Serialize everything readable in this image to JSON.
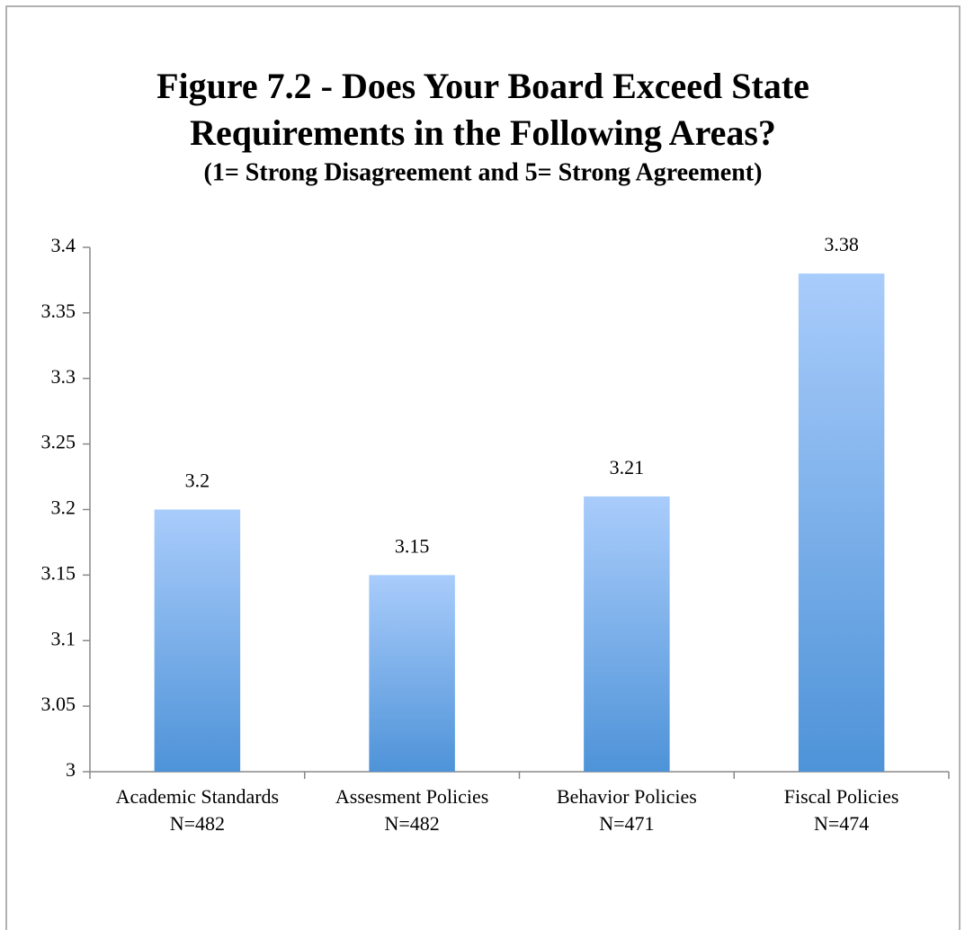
{
  "chart_data": {
    "type": "bar",
    "title": [
      "Figure 7.2 - Does Your Board Exceed State",
      "Requirements in the Following Areas?"
    ],
    "subtitle": "(1= Strong Disagreement and 5= Strong Agreement)",
    "categories": [
      "Academic Standards",
      "Assesment Policies",
      "Behavior Policies",
      "Fiscal Policies"
    ],
    "sample_sizes": [
      "N=482",
      "N=482",
      "N=471",
      "N=474"
    ],
    "values": [
      3.2,
      3.15,
      3.21,
      3.38
    ],
    "color": [
      "#a9ccfb",
      "#4e93d8"
    ],
    "ylim": [
      3,
      3.4
    ],
    "yticks": [
      3,
      3.05,
      3.1,
      3.15,
      3.2,
      3.25,
      3.3,
      3.35,
      3.4
    ],
    "grid": false
  }
}
